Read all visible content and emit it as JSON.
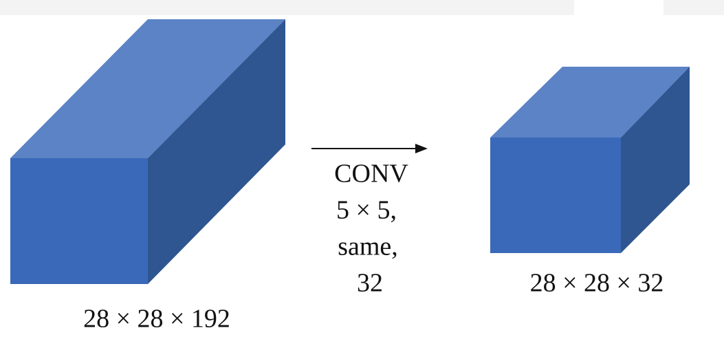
{
  "nodes": [
    {
      "label": "28 × 28 × 192"
    },
    {
      "label": "28 × 28 × 32"
    }
  ],
  "operation": {
    "lines": [
      "CONV",
      "5 × 5,",
      "same,",
      "32"
    ]
  }
}
